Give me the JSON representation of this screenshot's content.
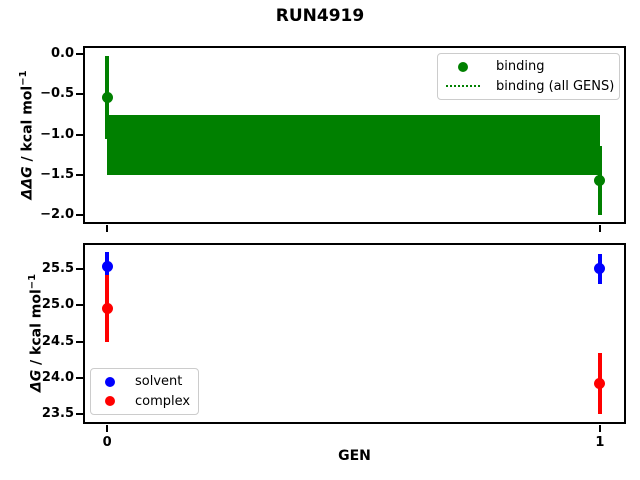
{
  "title": "RUN4919",
  "xlabel": "GEN",
  "chart_data": [
    {
      "type": "scatter",
      "name": "ddg-panel",
      "ylabel": {
        "italic": "ΔΔG",
        "rest": " / kcal mol",
        "sup": "−1"
      },
      "xlim": [
        -0.047,
        1.051
      ],
      "ylim": [
        -2.099,
        0.087
      ],
      "grid": false,
      "yticks": [
        {
          "v": 0.0,
          "label": "0.0"
        },
        {
          "v": -0.5,
          "label": "−0.5"
        },
        {
          "v": -1.0,
          "label": "−1.0"
        },
        {
          "v": -1.5,
          "label": "−1.5"
        },
        {
          "v": -2.0,
          "label": "−2.0"
        }
      ],
      "xticks": [
        {
          "v": 0,
          "label": "0"
        },
        {
          "v": 1,
          "label": "1"
        }
      ],
      "show_xtick_labels": false,
      "band": {
        "label": "binding (all GENS)",
        "color": "#008000",
        "x": [
          0,
          1
        ],
        "top": -0.76,
        "bottom": -1.5,
        "center": -1.13
      },
      "series": [
        {
          "name": "binding",
          "color": "#008000",
          "x": [
            0,
            1
          ],
          "y": [
            -0.54,
            -1.57
          ],
          "yerr": [
            0.51,
            0.43
          ]
        }
      ],
      "legend": [
        {
          "label": "binding",
          "marker": "circle",
          "color": "#008000"
        },
        {
          "label": "binding (all GENS)",
          "marker": "dotted-line",
          "color": "#008000"
        }
      ],
      "legend_position": "upper right"
    },
    {
      "type": "scatter",
      "name": "dg-panel",
      "ylabel": {
        "italic": "ΔG",
        "rest": " / kcal mol",
        "sup": "−1"
      },
      "xlabel": "GEN",
      "xlim": [
        -0.047,
        1.051
      ],
      "ylim": [
        23.38,
        25.844
      ],
      "grid": false,
      "yticks": [
        {
          "v": 25.5,
          "label": "25.5"
        },
        {
          "v": 25.0,
          "label": "25.0"
        },
        {
          "v": 24.5,
          "label": "24.5"
        },
        {
          "v": 24.0,
          "label": "24.0"
        },
        {
          "v": 23.5,
          "label": "23.5"
        }
      ],
      "xticks": [
        {
          "v": 0,
          "label": "0"
        },
        {
          "v": 1,
          "label": "1"
        }
      ],
      "show_xtick_labels": true,
      "series": [
        {
          "name": "solvent",
          "color": "#0000ff",
          "x": [
            0,
            1
          ],
          "y": [
            25.54,
            25.5
          ],
          "yerr": [
            0.19,
            0.2
          ]
        },
        {
          "name": "complex",
          "color": "#ff0000",
          "x": [
            0,
            1
          ],
          "y": [
            24.96,
            23.93
          ],
          "yerr": [
            0.46,
            0.42
          ]
        }
      ],
      "legend": [
        {
          "label": "solvent",
          "marker": "circle",
          "color": "#0000ff"
        },
        {
          "label": "complex",
          "marker": "circle",
          "color": "#ff0000"
        }
      ],
      "legend_position": "lower left"
    }
  ]
}
